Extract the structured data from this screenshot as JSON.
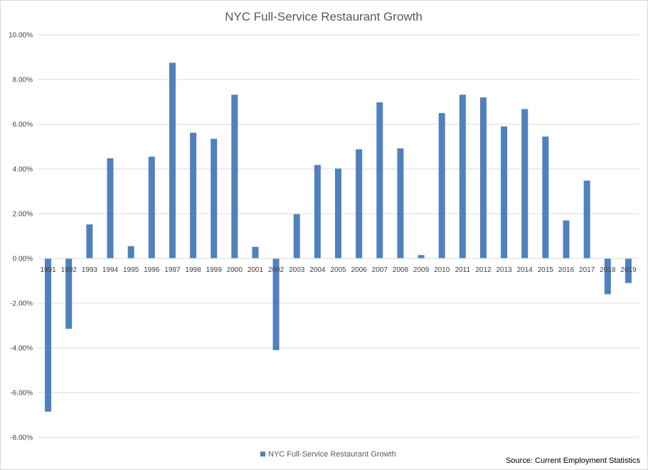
{
  "chart_data": {
    "type": "bar",
    "title": "NYC Full-Service Restaurant Growth",
    "xlabel": "",
    "ylabel": "",
    "ylim": [
      -0.08,
      0.1
    ],
    "ytick_step": 0.02,
    "ytick_format": "percent_2dp",
    "ytick_labels": [
      "-8.00%",
      "-6.00%",
      "-4.00%",
      "-2.00%",
      "0.00%",
      "2.00%",
      "4.00%",
      "6.00%",
      "8.00%",
      "10.00%"
    ],
    "grid": true,
    "legend_position": "bottom",
    "categories": [
      "1991",
      "1992",
      "1993",
      "1994",
      "1995",
      "1996",
      "1997",
      "1998",
      "1999",
      "2000",
      "2001",
      "2002",
      "2003",
      "2004",
      "2005",
      "2006",
      "2007",
      "2008",
      "2009",
      "2010",
      "2011",
      "2012",
      "2013",
      "2014",
      "2015",
      "2016",
      "2017",
      "2018",
      "2019"
    ],
    "series": [
      {
        "name": "NYC Full-Service Restaurant Growth",
        "color": "#4f81bd",
        "values": [
          -0.0685,
          -0.0315,
          0.0152,
          0.0448,
          0.0055,
          0.0455,
          0.0875,
          0.0562,
          0.0535,
          0.0732,
          0.0052,
          -0.041,
          0.0198,
          0.0418,
          0.0402,
          0.0488,
          0.0698,
          0.0492,
          0.0015,
          0.065,
          0.0732,
          0.072,
          0.059,
          0.0668,
          0.0545,
          0.017,
          0.0348,
          -0.016,
          -0.011
        ]
      }
    ],
    "annotation": "Source: Current Employment Statistics"
  }
}
